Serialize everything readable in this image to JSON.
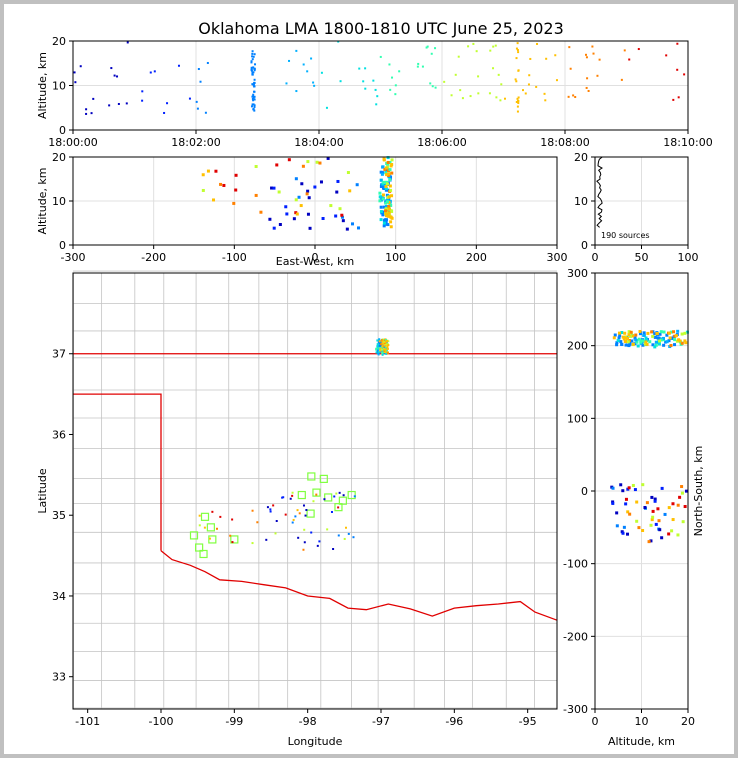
{
  "chart_data": {
    "title": "Oklahoma LMA 1800-1810 UTC June 25, 2023",
    "sources_label": "190 sources",
    "colors": {
      "frame": "#000000",
      "grid": "#e0e0e0",
      "county": "#c4c4c4",
      "state": "#e00000",
      "marker": "#80ff40"
    },
    "panels": {
      "alt_time": {
        "ylabel": "Altitude, km",
        "ylim": [
          0,
          20
        ],
        "yticks": [
          "0",
          "10",
          "20"
        ],
        "xticks": [
          "18:00:00",
          "18:02:00",
          "18:04:00",
          "18:06:00",
          "18:08:00",
          "18:10:00"
        ]
      },
      "alt_ew": {
        "ylabel": "Altitude, km",
        "xlabel": "East-West, km",
        "xlim": [
          -300,
          300
        ],
        "ylim": [
          0,
          20
        ],
        "xticks": [
          "-300",
          "-200",
          "-100",
          "0",
          "100",
          "200",
          "300"
        ],
        "yticks": [
          "0",
          "10",
          "20"
        ]
      },
      "hist": {
        "xticks": [
          "0",
          "50",
          "100"
        ],
        "yticks": [
          "0",
          "10",
          "20"
        ]
      },
      "plan": {
        "xlabel": "Longitude",
        "ylabel": "Latitude",
        "xlim": [
          -101.2,
          -94.6
        ],
        "ylim": [
          32.6,
          38.0
        ],
        "xticks": [
          "-101",
          "-100",
          "-99",
          "-98",
          "-97",
          "-96",
          "-95"
        ],
        "yticks": [
          "33",
          "34",
          "35",
          "36",
          "37"
        ]
      },
      "ns_alt": {
        "xlabel": "Altitude, km",
        "ylabel": "North-South, km",
        "xlim": [
          0,
          20
        ],
        "ylim": [
          -300,
          300
        ],
        "xticks": [
          "0",
          "10",
          "20"
        ],
        "yticks": [
          "-300",
          "-200",
          "-100",
          "0",
          "100",
          "200",
          "300"
        ]
      }
    },
    "stations": [
      [
        -97.95,
        35.48
      ],
      [
        -97.78,
        35.45
      ],
      [
        -98.08,
        35.25
      ],
      [
        -97.88,
        35.28
      ],
      [
        -97.72,
        35.22
      ],
      [
        -97.52,
        35.18
      ],
      [
        -97.4,
        35.25
      ],
      [
        -97.58,
        35.1
      ],
      [
        -97.96,
        35.02
      ],
      [
        -99.4,
        34.98
      ],
      [
        -99.32,
        34.85
      ],
      [
        -99.55,
        34.75
      ],
      [
        -99.3,
        34.7
      ],
      [
        -99.0,
        34.7
      ],
      [
        -99.48,
        34.6
      ],
      [
        -99.42,
        34.52
      ]
    ],
    "series": [
      {
        "name": "time-ordered sources"
      }
    ]
  }
}
